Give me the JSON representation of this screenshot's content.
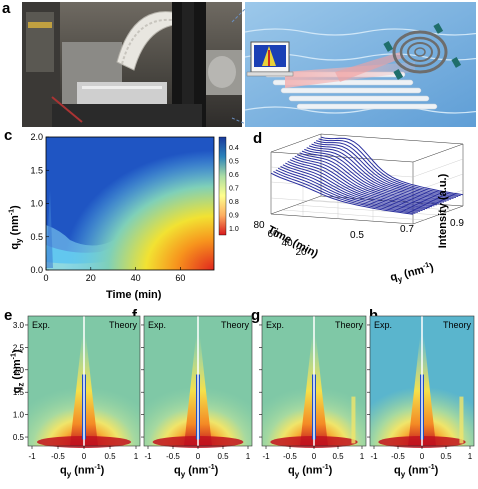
{
  "figure": {
    "panel_labels": [
      "a",
      "b",
      "c",
      "d",
      "e",
      "f",
      "g",
      "h"
    ]
  },
  "panel_c": {
    "xlabel": "Time (min)",
    "ylabel": "q",
    "ylabel_sub": "y",
    "ylabel_unit": " (nm",
    "ylabel_exp": "-1",
    "ylabel_close": ")",
    "xticks": [
      "0",
      "20",
      "40",
      "60"
    ],
    "yticks": [
      "2.0",
      "1.5",
      "1.0",
      "0.5",
      "0.0"
    ],
    "colorbar_ticks": [
      "0.4",
      "0.5",
      "0.6",
      "0.7",
      "0.8",
      "0.9",
      "1.0"
    ],
    "colors": {
      "low": "#1a4fc0",
      "mid": "#62c7ef",
      "high": "#f2e232",
      "max": "#e0261e"
    }
  },
  "panel_d": {
    "x_label": "Time (min)",
    "y_label": "q",
    "y_sub": "y",
    "y_unit": " (nm",
    "y_exp": "-1",
    "y_close": ")",
    "z_label": "Intensity (a.u.)",
    "time_ticks": [
      "80",
      "60",
      "40",
      "20"
    ],
    "q_ticks": [
      "0.5",
      "0.7",
      "0.9"
    ],
    "line_color": "#2a2f9e"
  },
  "gisaxs": {
    "left_tag": "Exp.",
    "right_tag": "Theory",
    "xlabel": "q",
    "xlabel_sub": "y",
    "xlabel_unit": " (nm",
    "xlabel_exp": "-1",
    "xlabel_close": ")",
    "ylabel": "q",
    "ylabel_sub": "z",
    "ylabel_unit": " (nm",
    "ylabel_exp": "-1",
    "ylabel_close": ")",
    "xticks": [
      "-1",
      "-0.5",
      "0",
      "0.5",
      "1"
    ],
    "yticks": [
      "3.0",
      "2.5",
      "2.0",
      "1.5",
      "1.0",
      "0.5"
    ]
  }
}
